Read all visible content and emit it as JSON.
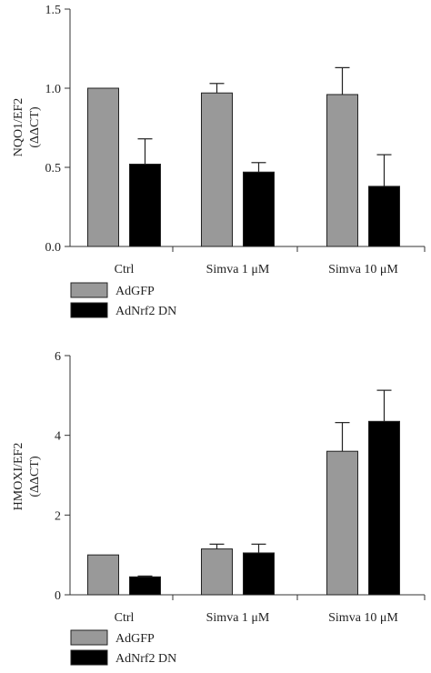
{
  "chart_data": [
    {
      "type": "bar",
      "categories": [
        "Ctrl",
        "Simva 1 μM",
        "Simva 10 μM"
      ],
      "series": [
        {
          "name": "AdGFP",
          "values": [
            1.0,
            0.97,
            0.96
          ],
          "errors": [
            0.0,
            0.06,
            0.17
          ],
          "color": "#999999"
        },
        {
          "name": "AdNrf2 DN",
          "values": [
            0.52,
            0.47,
            0.38
          ],
          "errors": [
            0.16,
            0.06,
            0.2
          ],
          "color": "#000000"
        }
      ],
      "ylabel": [
        "NQO1/EF2",
        "(ΔΔCT)"
      ],
      "ylim": [
        0,
        1.5
      ],
      "yticks": [
        "0.0",
        "0.5",
        "1.0",
        "1.5"
      ],
      "ytick_values": [
        0,
        0.5,
        1.0,
        1.5
      ],
      "grid": false,
      "legend_position": "bottom-left"
    },
    {
      "type": "bar",
      "categories": [
        "Ctrl",
        "Simva 1 μM",
        "Simva 10 μM"
      ],
      "series": [
        {
          "name": "AdGFP",
          "values": [
            1.0,
            1.15,
            3.6
          ],
          "errors": [
            0.0,
            0.12,
            0.72
          ],
          "color": "#999999"
        },
        {
          "name": "AdNrf2 DN",
          "values": [
            0.45,
            1.05,
            4.35
          ],
          "errors": [
            0.02,
            0.22,
            0.78
          ],
          "color": "#000000"
        }
      ],
      "ylabel": [
        "HMOXI/EF2",
        "(ΔΔCT)"
      ],
      "ylim": [
        0,
        6
      ],
      "yticks": [
        "0",
        "2",
        "4",
        "6"
      ],
      "ytick_values": [
        0,
        2,
        4,
        6
      ],
      "grid": false,
      "legend_position": "bottom-left"
    }
  ]
}
